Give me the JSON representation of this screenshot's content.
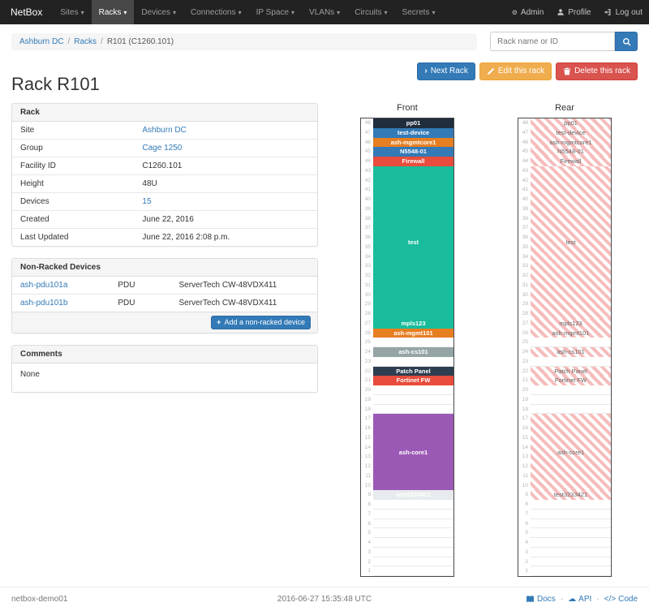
{
  "navbar": {
    "brand": "NetBox",
    "active_item": "Racks",
    "items": [
      {
        "label": "Sites"
      },
      {
        "label": "Racks"
      },
      {
        "label": "Devices"
      },
      {
        "label": "Connections"
      },
      {
        "label": "IP Space"
      },
      {
        "label": "VLANs"
      },
      {
        "label": "Circuits"
      },
      {
        "label": "Secrets"
      }
    ],
    "right_items": [
      {
        "label": "Admin",
        "icon": "gear"
      },
      {
        "label": "Profile",
        "icon": "user"
      },
      {
        "label": "Log out",
        "icon": "logout"
      }
    ]
  },
  "breadcrumb": {
    "items": [
      "Ashburn DC",
      "Racks",
      "R101 (C1260.101)"
    ]
  },
  "search": {
    "placeholder": "Rack name or ID"
  },
  "actions": [
    {
      "label": "Next Rack",
      "style": "primary",
      "icon": "chevron-right"
    },
    {
      "label": "Edit this rack",
      "style": "warning",
      "icon": "pencil"
    },
    {
      "label": "Delete this rack",
      "style": "danger",
      "icon": "trash"
    }
  ],
  "page_title": "Rack R101",
  "rack_panel": {
    "title": "Rack",
    "rows": [
      {
        "label": "Site",
        "value": "Ashburn DC",
        "link": true
      },
      {
        "label": "Group",
        "value": "Cage 1250",
        "link": true
      },
      {
        "label": "Facility ID",
        "value": "C1260.101",
        "link": false
      },
      {
        "label": "Height",
        "value": "48U",
        "link": false
      },
      {
        "label": "Devices",
        "value": "15",
        "link": true
      },
      {
        "label": "Created",
        "value": "June 22, 2016",
        "link": false
      },
      {
        "label": "Last Updated",
        "value": "June 22, 2016 2:08 p.m.",
        "link": false
      }
    ]
  },
  "nonracked_panel": {
    "title": "Non-Racked Devices",
    "add_label": "Add a non-racked device",
    "rows": [
      {
        "name": "ash-pdu101a",
        "role": "PDU",
        "model": "ServerTech CW-48VDX411"
      },
      {
        "name": "ash-pdu101b",
        "role": "PDU",
        "model": "ServerTech CW-48VDX411"
      }
    ]
  },
  "comments_panel": {
    "title": "Comments",
    "body": "None"
  },
  "elevation": {
    "front_title": "Front",
    "rear_title": "Rear",
    "total_units": 48,
    "slots": [
      {
        "u": 48,
        "units": 1,
        "label": "pp01",
        "color": "#1f2d3d",
        "text": "#ffffff"
      },
      {
        "u": 47,
        "units": 1,
        "label": "test-device",
        "color": "#337ab7",
        "text": "#ffffff"
      },
      {
        "u": 46,
        "units": 1,
        "label": "ash-mgmtcore1",
        "color": "#e67e22",
        "text": "#ffffff"
      },
      {
        "u": 45,
        "units": 1,
        "label": "N5548-01",
        "color": "#337ab7",
        "text": "#ffffff"
      },
      {
        "u": 44,
        "units": 1,
        "label": "Firewall",
        "color": "#e74c3c",
        "text": "#ffffff"
      },
      {
        "u": 43,
        "units": 16,
        "label": "test",
        "color": "#18bc9c",
        "text": "#ffffff"
      },
      {
        "u": 27,
        "units": 1,
        "label": "mpls123",
        "color": "#18bc9c",
        "text": "#ffffff"
      },
      {
        "u": 26,
        "units": 1,
        "label": "ash-mgmt101",
        "color": "#e67e22",
        "text": "#ffffff"
      },
      {
        "u": 25,
        "units": 1,
        "label": ""
      },
      {
        "u": 24,
        "units": 1,
        "label": "ash-cs101",
        "color": "#95a5a6",
        "text": "#ffffff"
      },
      {
        "u": 23,
        "units": 1,
        "label": ""
      },
      {
        "u": 22,
        "units": 1,
        "label": "Patch Panel",
        "color": "#2c3e50",
        "text": "#ffffff"
      },
      {
        "u": 21,
        "units": 1,
        "label": "Fortinet FW",
        "color": "#e74c3c",
        "text": "#ffffff"
      },
      {
        "u": 20,
        "units": 1,
        "label": ""
      },
      {
        "u": 19,
        "units": 1,
        "label": ""
      },
      {
        "u": 18,
        "units": 1,
        "label": ""
      },
      {
        "u": 17,
        "units": 8,
        "label": "ash-core1",
        "color": "#9b59b6",
        "text": "#ffffff"
      },
      {
        "u": 9,
        "units": 1,
        "label": "test3233421",
        "color": "#e8ebed",
        "text": "#ffffff"
      },
      {
        "u": 8,
        "units": 1,
        "label": ""
      },
      {
        "u": 7,
        "units": 1,
        "label": ""
      },
      {
        "u": 6,
        "units": 1,
        "label": ""
      },
      {
        "u": 5,
        "units": 1,
        "label": ""
      },
      {
        "u": 4,
        "units": 1,
        "label": ""
      },
      {
        "u": 3,
        "units": 1,
        "label": ""
      },
      {
        "u": 2,
        "units": 1,
        "label": ""
      },
      {
        "u": 1,
        "units": 1,
        "label": ""
      }
    ]
  },
  "footer": {
    "hostname": "netbox-demo01",
    "timestamp": "2016-06-27 15:35:48 UTC",
    "links": [
      {
        "label": "Docs",
        "icon": "book"
      },
      {
        "label": "API",
        "icon": "cloud"
      },
      {
        "label": "Code",
        "icon": "code"
      }
    ]
  }
}
